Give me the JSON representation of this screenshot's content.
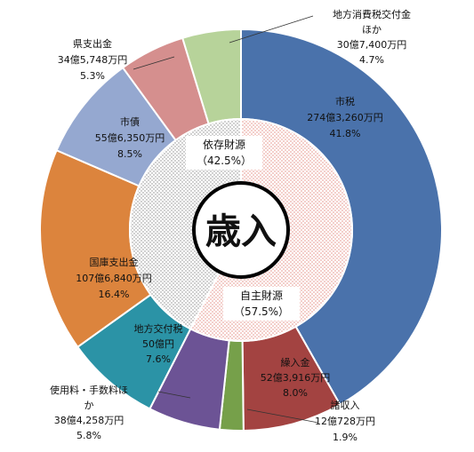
{
  "chart_data": {
    "type": "pie",
    "variant": "double-donut",
    "center_label": "歳入",
    "series": [
      {
        "name": "",
        "slices": [
          {
            "id": "shizei",
            "lines": [
              "市税",
              "274億3,260万円",
              "41.8%"
            ],
            "value": 41.8,
            "color": "#4a72ab"
          },
          {
            "id": "kurinyu",
            "lines": [
              "繰入金",
              "52億3,916万円",
              "8.0%"
            ],
            "value": 8.0,
            "color": "#a34341"
          },
          {
            "id": "shoshunyu",
            "lines": [
              "諸収入",
              "12億728万円",
              "1.9%"
            ],
            "value": 1.9,
            "color": "#76a04a"
          },
          {
            "id": "shiyoryo",
            "lines": [
              "使用料・手数料ほ",
              "か",
              "38億4,258万円",
              "5.8%"
            ],
            "value": 5.8,
            "color": "#6c5395"
          },
          {
            "id": "chihokofuzei",
            "lines": [
              "地方交付税",
              "50億円",
              "7.6%"
            ],
            "value": 7.6,
            "color": "#2b93a6"
          },
          {
            "id": "kokko",
            "lines": [
              "国庫支出金",
              "107億6,840万円",
              "16.4%"
            ],
            "value": 16.4,
            "color": "#dc843d"
          },
          {
            "id": "shisai",
            "lines": [
              "市債",
              "55億6,350万円",
              "8.5%"
            ],
            "value": 8.5,
            "color": "#95a8d0"
          },
          {
            "id": "kenshishutsu",
            "lines": [
              "県支出金",
              "34億5,748万円",
              "5.3%"
            ],
            "value": 5.3,
            "color": "#d58f8e"
          },
          {
            "id": "chihoshohi",
            "lines": [
              "地方消費税交付金",
              "ほか",
              "30億7,400万円",
              "4.7%"
            ],
            "value": 4.7,
            "color": "#b7d39a"
          }
        ]
      },
      {
        "name": "",
        "slices": [
          {
            "id": "jishu",
            "lines": [
              "自主財源",
              "（57.5%）"
            ],
            "value": 57.5,
            "color": "#e58f86"
          },
          {
            "id": "izon",
            "lines": [
              "依存財源",
              "（42.5%）"
            ],
            "value": 42.5,
            "color": "#8c8c8c"
          }
        ]
      }
    ]
  }
}
